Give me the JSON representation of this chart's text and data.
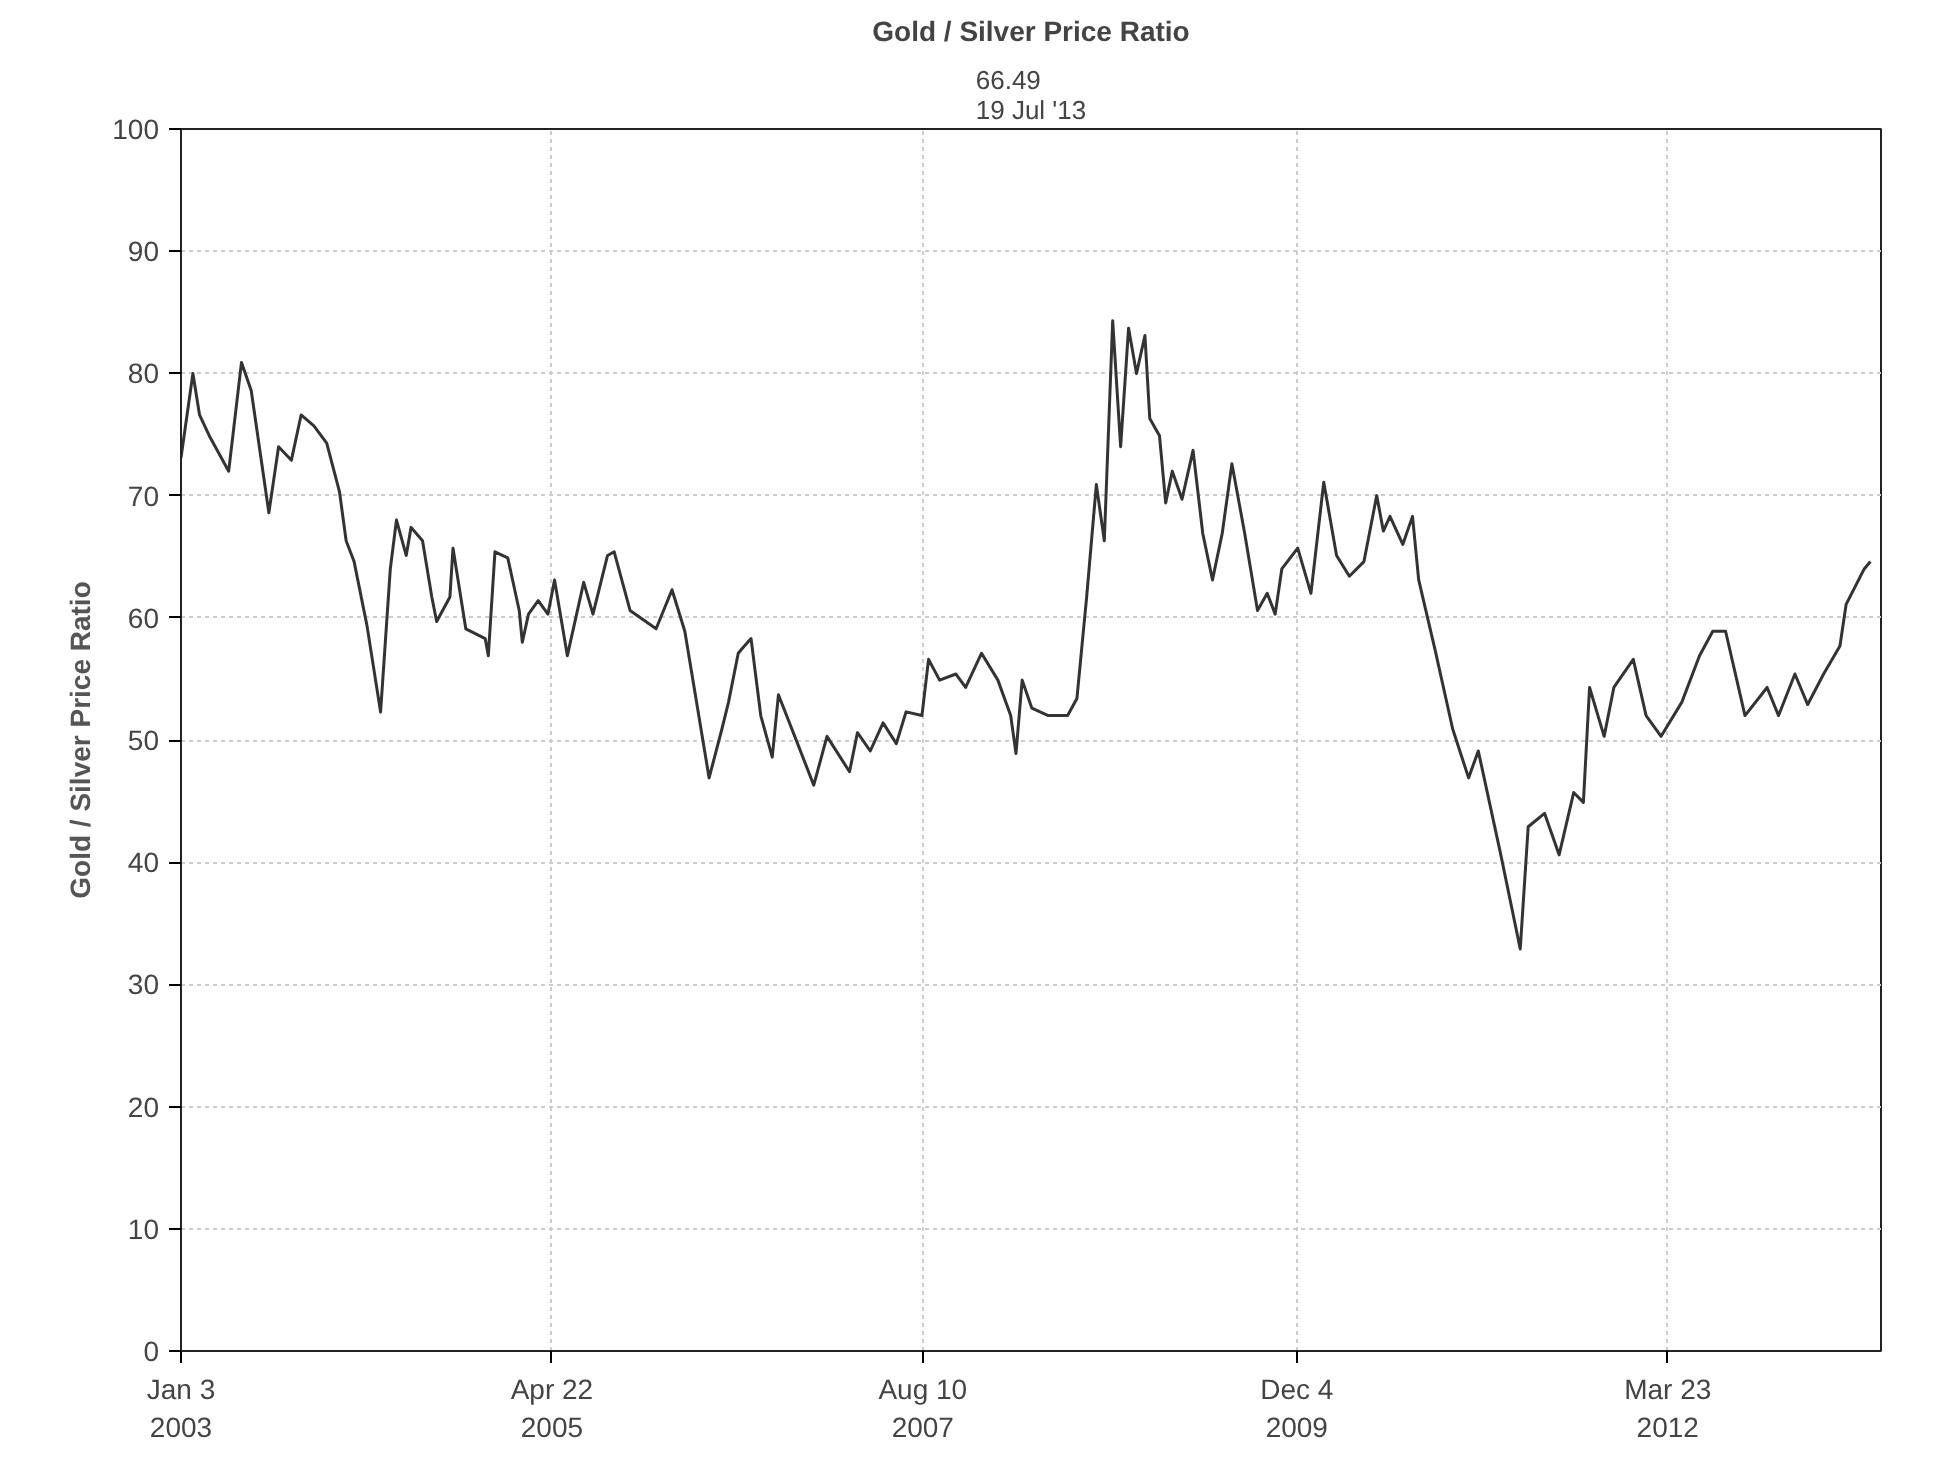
{
  "chart_data": {
    "type": "line",
    "title": "Gold / Silver Price Ratio",
    "subtitle": "66.49\n19 Jul '13",
    "ylabel": "Gold / Silver Price Ratio",
    "x": [
      "2003-01-03",
      "2003-01-30",
      "2003-02-14",
      "2003-03-08",
      "2003-04-21",
      "2003-05-20",
      "2003-06-11",
      "2003-07-03",
      "2003-07-21",
      "2003-08-12",
      "2003-09-10",
      "2003-10-02",
      "2003-10-31",
      "2003-11-29",
      "2003-12-28",
      "2004-01-12",
      "2004-01-30",
      "2004-02-28",
      "2004-03-30",
      "2004-04-21",
      "2004-05-05",
      "2004-05-27",
      "2004-06-07",
      "2004-07-03",
      "2004-07-24",
      "2004-08-04",
      "2004-09-03",
      "2004-09-10",
      "2004-10-09",
      "2004-11-22",
      "2004-11-29",
      "2004-12-14",
      "2005-01-12",
      "2005-02-07",
      "2005-02-14",
      "2005-02-28",
      "2005-03-22",
      "2005-04-13",
      "2005-04-28",
      "2005-05-27",
      "2005-07-03",
      "2005-07-24",
      "2005-08-26",
      "2005-09-10",
      "2005-10-16",
      "2005-12-14",
      "2006-01-19",
      "2006-02-17",
      "2006-04-13",
      "2006-05-12",
      "2006-05-27",
      "2006-06-18",
      "2006-06-25",
      "2006-07-17",
      "2006-08-08",
      "2006-09-03",
      "2006-09-17",
      "2006-10-24",
      "2006-12-06",
      "2007-01-05",
      "2007-02-25",
      "2007-03-15",
      "2007-04-13",
      "2007-05-12",
      "2007-06-11",
      "2007-07-03",
      "2007-08-08",
      "2007-08-23",
      "2007-09-17",
      "2007-10-24",
      "2007-11-15",
      "2007-12-21",
      "2008-01-27",
      "2008-02-25",
      "2008-03-08",
      "2008-03-22",
      "2008-04-13",
      "2008-05-20",
      "2008-07-03",
      "2008-07-24",
      "2008-08-15",
      "2008-09-06",
      "2008-09-24",
      "2008-10-13",
      "2008-10-31",
      "2008-11-18",
      "2008-12-06",
      "2008-12-25",
      "2009-01-05",
      "2009-01-27",
      "2009-02-10",
      "2009-02-25",
      "2009-03-19",
      "2009-04-13",
      "2009-05-05",
      "2009-05-27",
      "2009-06-18",
      "2009-07-10",
      "2009-08-08",
      "2009-09-06",
      "2009-09-28",
      "2009-10-16",
      "2009-10-31",
      "2009-12-06",
      "2010-01-05",
      "2010-02-03",
      "2010-03-04",
      "2010-04-02",
      "2010-05-05",
      "2010-06-03",
      "2010-06-18",
      "2010-07-03",
      "2010-08-01",
      "2010-08-23",
      "2010-09-06",
      "2010-10-13",
      "2010-11-22",
      "2010-12-28",
      "2011-01-19",
      "2011-03-11",
      "2011-04-24",
      "2011-05-12",
      "2011-06-18",
      "2011-07-21",
      "2011-08-23",
      "2011-09-14",
      "2011-09-28",
      "2011-10-31",
      "2011-11-22",
      "2012-01-05",
      "2012-02-03",
      "2012-03-08",
      "2012-04-24",
      "2012-06-03",
      "2012-07-03",
      "2012-08-01",
      "2012-09-14",
      "2012-11-03",
      "2012-11-29",
      "2013-01-05",
      "2013-02-03",
      "2013-03-11",
      "2013-04-17",
      "2013-05-01",
      "2013-06-11",
      "2013-06-25"
    ],
    "series": [
      {
        "color": "#333333",
        "values": [
          73.1,
          80,
          76.6,
          74.9,
          72,
          80.9,
          78.6,
          73.1,
          68.6,
          74,
          72.9,
          76.6,
          75.7,
          74.3,
          70.3,
          66.3,
          64.6,
          59.4,
          52.3,
          64,
          68,
          65.1,
          67.4,
          66.3,
          61.7,
          59.7,
          61.7,
          65.7,
          59.1,
          58.3,
          56.9,
          65.4,
          64.9,
          60.6,
          58,
          60.3,
          61.4,
          60.3,
          63.1,
          56.9,
          62.9,
          60.3,
          65.1,
          65.4,
          60.6,
          59.1,
          62.3,
          58.9,
          46.9,
          50.9,
          53.1,
          57.1,
          57.4,
          58.3,
          52,
          48.6,
          53.7,
          50.3,
          46.3,
          50.3,
          47.4,
          50.6,
          49.1,
          51.4,
          49.7,
          52.3,
          52,
          56.6,
          54.9,
          55.4,
          54.3,
          57.1,
          54.9,
          52,
          48.9,
          54.9,
          52.6,
          52,
          52,
          53.4,
          61.7,
          70.9,
          66.3,
          84.3,
          74,
          83.7,
          80,
          83.1,
          76.3,
          74.9,
          69.4,
          72,
          69.7,
          73.7,
          66.9,
          63.1,
          66.9,
          72.6,
          66.9,
          60.6,
          62,
          60.3,
          64,
          65.7,
          62,
          71.1,
          65.1,
          63.4,
          64.6,
          70,
          67.1,
          68.3,
          66,
          68.3,
          63.1,
          57.4,
          50.9,
          46.9,
          49.1,
          40.6,
          32.9,
          42.9,
          44,
          40.6,
          45.7,
          44.9,
          54.3,
          50.3,
          54.3,
          56.6,
          52,
          50.3,
          53.1,
          56.9,
          58.9,
          58.9,
          52,
          54.3,
          52,
          55.4,
          52.9,
          55.4,
          57.7,
          61.1,
          64,
          64.6
        ]
      }
    ],
    "xlim": [
      "2003-01-03",
      "2013-07-19"
    ],
    "xticks": [
      {
        "value": "2003-01-03",
        "label": "Jan 3\n2003"
      },
      {
        "value": "2005-04-22",
        "label": "Apr 22\n2005"
      },
      {
        "value": "2007-08-10",
        "label": "Aug 10\n2007"
      },
      {
        "value": "2009-12-04",
        "label": "Dec 4\n2009"
      },
      {
        "value": "2012-03-23",
        "label": "Mar 23\n2012"
      }
    ],
    "ylim": [
      0,
      100
    ],
    "yticks": [
      0,
      10,
      20,
      30,
      40,
      50,
      60,
      70,
      80,
      90,
      100
    ],
    "grid": true,
    "marker": "none",
    "line_style": "solid"
  }
}
